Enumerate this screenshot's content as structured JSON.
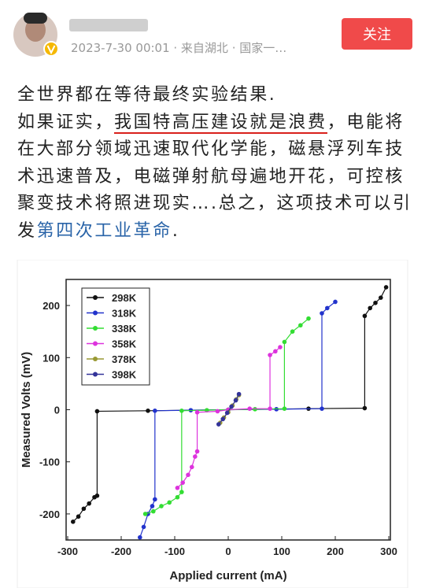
{
  "header": {
    "timestamp": "2023-7-30 00:01 · 来自湖北 · 国家一…",
    "follow_button": "关注"
  },
  "post": {
    "lines": [
      [
        "全世界都在等待最终实验结果."
      ],
      [
        "如果证实，",
        "我国特高压建设就是浪费",
        "，电能将"
      ],
      [
        "在大部分领域迅速取代化学能，磁悬浮列车技"
      ],
      [
        "术迅速普及，电磁弹射航母遍地开花，可控核"
      ],
      [
        "聚变技术将照进现实….总之，这项技术可以引"
      ],
      [
        "发",
        "第四次工业革命",
        "."
      ]
    ]
  },
  "chart_data": {
    "type": "line",
    "xlabel": "Applied current (mA)",
    "ylabel": "Measured Volts (mV)",
    "xlim": [
      -300,
      300
    ],
    "ylim": [
      -250,
      250
    ],
    "xticks": [
      -300,
      -200,
      -100,
      0,
      100,
      200,
      300
    ],
    "yticks": [
      -200,
      -100,
      0,
      100,
      200
    ],
    "legend": "upper left",
    "series": [
      {
        "name": "298K",
        "color": "#111111",
        "x": [
          -290,
          -280,
          -270,
          -260,
          -250,
          -245,
          -245,
          -150,
          0,
          150,
          255,
          255,
          265,
          275,
          285,
          295
        ],
        "values": [
          -215,
          -205,
          -190,
          -180,
          -168,
          -165,
          -3,
          -2,
          0,
          2,
          3,
          180,
          195,
          205,
          215,
          235
        ]
      },
      {
        "name": "318K",
        "color": "#2233cc",
        "x": [
          -165,
          -158,
          -150,
          -142,
          -137,
          -137,
          -70,
          0,
          90,
          175,
          175,
          185,
          200
        ],
        "values": [
          -245,
          -225,
          -200,
          -185,
          -172,
          -2,
          -1,
          0,
          1,
          2,
          185,
          195,
          207
        ]
      },
      {
        "name": "338K",
        "color": "#33dd33",
        "x": [
          -155,
          -140,
          -125,
          -110,
          -95,
          -87,
          -87,
          -40,
          0,
          50,
          105,
          105,
          120,
          135,
          150
        ],
        "values": [
          -200,
          -195,
          -185,
          -178,
          -168,
          -158,
          -2,
          -1,
          0,
          1,
          2,
          130,
          150,
          162,
          175
        ]
      },
      {
        "name": "358K",
        "color": "#dd33dd",
        "x": [
          -95,
          -85,
          -75,
          -68,
          -62,
          -58,
          -58,
          -20,
          0,
          40,
          78,
          78,
          88,
          97
        ],
        "values": [
          -150,
          -140,
          -125,
          -110,
          -90,
          -80,
          -5,
          -3,
          0,
          2,
          2,
          105,
          112,
          120
        ]
      },
      {
        "name": "378K",
        "color": "#999933",
        "x": [
          -15,
          -8,
          0,
          8,
          15,
          20
        ],
        "values": [
          -25,
          -15,
          -5,
          8,
          20,
          28
        ]
      },
      {
        "name": "398K",
        "color": "#333399",
        "x": [
          -18,
          -10,
          -2,
          6,
          14,
          20
        ],
        "values": [
          -28,
          -18,
          -6,
          6,
          18,
          30
        ]
      }
    ]
  }
}
